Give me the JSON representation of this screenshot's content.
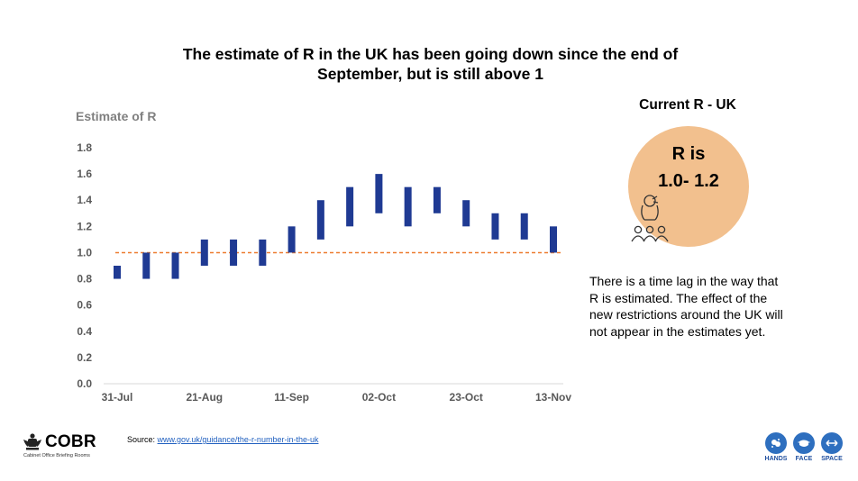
{
  "title_lines": [
    "The estimate of R in the UK has been going down since the end of",
    "September, but is still above 1"
  ],
  "side_panel": {
    "title": "Current R - UK",
    "r_text_line1": "R is",
    "r_text_line2": "1.0- 1.2",
    "note": "There is a time lag in the way that R is estimated. The effect of the new restrictions around the UK will not appear in the estimates yet.",
    "circle_color": "#f2c08e"
  },
  "footer": {
    "org_name": "COBR",
    "org_subtitle": "Cabinet Office Briefing Rooms",
    "source_label": "Source:",
    "source_link": "www.gov.uk/guidance/the-r-number-in-the-uk",
    "badges": [
      "HANDS",
      "FACE",
      "SPACE"
    ],
    "badge_color": "#2e6fbf"
  },
  "chart_data": {
    "type": "bar",
    "subtype": "floating-range",
    "ylabel": "Estimate of R",
    "ylim": [
      0.0,
      1.8
    ],
    "yticks": [
      "0.0",
      "0.2",
      "0.4",
      "0.6",
      "0.8",
      "1.0",
      "1.2",
      "1.4",
      "1.6",
      "1.8"
    ],
    "xtick_labels": [
      "31-Jul",
      "21-Aug",
      "11-Sep",
      "02-Oct",
      "23-Oct",
      "13-Nov"
    ],
    "x_range": [
      "2020-07-31",
      "2020-11-13"
    ],
    "ranges": [
      {
        "date": "2020-07-31",
        "low": 0.8,
        "high": 0.9
      },
      {
        "date": "2020-08-07",
        "low": 0.8,
        "high": 1.0
      },
      {
        "date": "2020-08-14",
        "low": 0.8,
        "high": 1.0
      },
      {
        "date": "2020-08-21",
        "low": 0.9,
        "high": 1.1
      },
      {
        "date": "2020-08-28",
        "low": 0.9,
        "high": 1.1
      },
      {
        "date": "2020-09-04",
        "low": 0.9,
        "high": 1.1
      },
      {
        "date": "2020-09-11",
        "low": 1.0,
        "high": 1.2
      },
      {
        "date": "2020-09-18",
        "low": 1.1,
        "high": 1.4
      },
      {
        "date": "2020-09-25",
        "low": 1.2,
        "high": 1.5
      },
      {
        "date": "2020-10-02",
        "low": 1.3,
        "high": 1.6
      },
      {
        "date": "2020-10-09",
        "low": 1.2,
        "high": 1.5
      },
      {
        "date": "2020-10-16",
        "low": 1.3,
        "high": 1.5
      },
      {
        "date": "2020-10-23",
        "low": 1.2,
        "high": 1.4
      },
      {
        "date": "2020-10-30",
        "low": 1.1,
        "high": 1.3
      },
      {
        "date": "2020-11-06",
        "low": 1.1,
        "high": 1.3
      },
      {
        "date": "2020-11-13",
        "low": 1.0,
        "high": 1.2
      }
    ],
    "reference_line": {
      "y": 1.0,
      "style": "dashed",
      "color": "#ed7d31"
    },
    "bar_color": "#1f3a93",
    "grid": false,
    "legend": "none"
  }
}
